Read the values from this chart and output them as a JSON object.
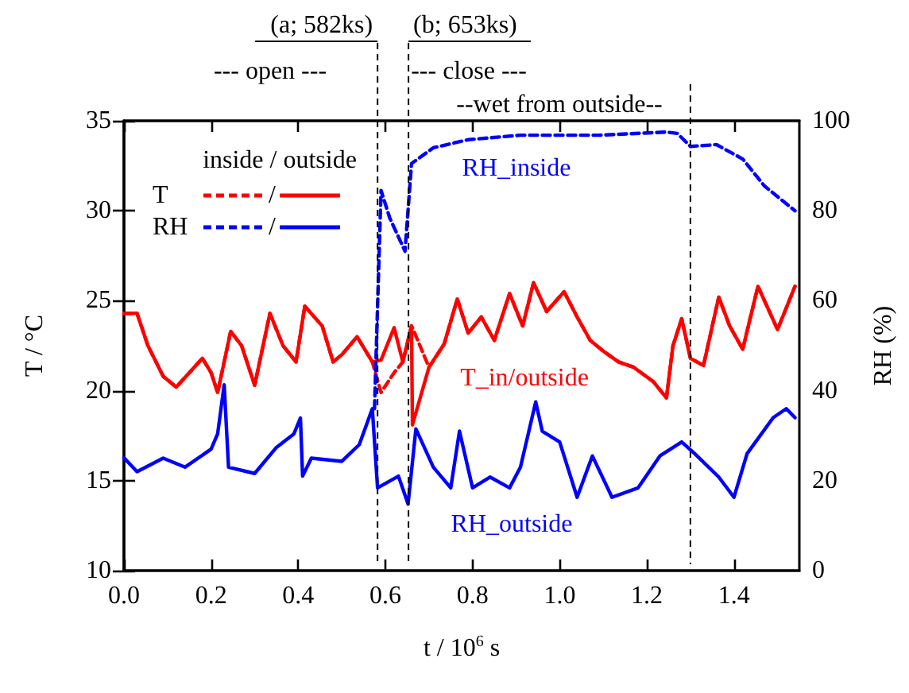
{
  "chart_data": {
    "type": "line",
    "xlabel": "t / 10$^{6}$ s",
    "ylabel": "T / °C",
    "y2label": "RH (%)",
    "legend_title": "inside / outside",
    "xlim": [
      0,
      1.55
    ],
    "xticks": [
      {
        "value": 0,
        "label": "0.0"
      },
      {
        "value": 0.2,
        "label": "0.2"
      },
      {
        "value": 0.4,
        "label": "0.4"
      },
      {
        "value": 0.6,
        "label": "0.6"
      },
      {
        "value": 0.8,
        "label": "0.8"
      },
      {
        "value": 1,
        "label": "1.0"
      },
      {
        "value": 1.2,
        "label": "1.2"
      },
      {
        "value": 1.4,
        "label": "1.4"
      }
    ],
    "ylim": [
      10,
      35
    ],
    "yticks": [
      10,
      15,
      20,
      25,
      30,
      35
    ],
    "y2lim": [
      0,
      100
    ],
    "y2ticks": [
      0,
      20,
      40,
      60,
      80,
      100
    ],
    "grid": false,
    "legend": "top left",
    "marker": "none",
    "series": [
      {
        "name": "T",
        "color": "#ff0000",
        "line_style": "dashed",
        "x": [
          0,
          0.03,
          0.055,
          0.09,
          0.12,
          0.15,
          0.18,
          0.2,
          0.215,
          0.245,
          0.27,
          0.3,
          0.335,
          0.365,
          0.395,
          0.415,
          0.455,
          0.48,
          0.5,
          0.535,
          0.57,
          0.59,
          0.62,
          0.64,
          0.66,
          0.662,
          0.7,
          0.735,
          0.765,
          0.79,
          0.82,
          0.85,
          0.885,
          0.915,
          0.94,
          0.97,
          1.01,
          1.04,
          1.07,
          1.1,
          1.135,
          1.17,
          1.215,
          1.245,
          1.26,
          1.28,
          1.3,
          1.33,
          1.365,
          1.39,
          1.42,
          1.455,
          1.5,
          1.54
        ],
        "values": [
          24.3,
          24.3,
          22.5,
          20.8,
          20.2,
          21.0,
          21.8,
          21.0,
          19.9,
          23.3,
          22.5,
          20.3,
          24.3,
          22.5,
          21.6,
          24.7,
          23.6,
          21.6,
          22.0,
          23.0,
          21.6,
          19.9,
          21.0,
          21.6,
          23.6,
          23.5,
          21.3,
          22.6,
          25.1,
          23.2,
          24.1,
          22.8,
          25.4,
          23.6,
          26.0,
          24.4,
          25.5,
          24.1,
          22.8,
          22.2,
          21.6,
          21.3,
          20.5,
          19.6,
          22.5,
          24.0,
          21.8,
          21.4,
          25.2,
          23.6,
          22.3,
          25.8,
          23.4,
          25.8
        ]
      },
      {
        "name": "/",
        "color": "#ff0000",
        "line_style": "solid",
        "x": [
          0,
          0.03,
          0.055,
          0.09,
          0.12,
          0.15,
          0.18,
          0.2,
          0.215,
          0.245,
          0.27,
          0.3,
          0.335,
          0.365,
          0.395,
          0.415,
          0.455,
          0.48,
          0.5,
          0.535,
          0.57,
          0.59,
          0.62,
          0.64,
          0.66,
          0.662,
          0.7,
          0.735,
          0.765,
          0.79,
          0.82,
          0.85,
          0.885,
          0.915,
          0.94,
          0.97,
          1.01,
          1.04,
          1.07,
          1.1,
          1.135,
          1.17,
          1.215,
          1.245,
          1.26,
          1.28,
          1.3,
          1.33,
          1.365,
          1.39,
          1.42,
          1.455,
          1.5,
          1.54
        ],
        "values": [
          24.3,
          24.3,
          22.5,
          20.8,
          20.2,
          21.0,
          21.8,
          21.0,
          19.9,
          23.3,
          22.5,
          20.3,
          24.3,
          22.5,
          21.6,
          24.7,
          23.6,
          21.6,
          22.0,
          23.0,
          21.6,
          21.7,
          23.5,
          21.6,
          23.6,
          18.1,
          21.3,
          22.6,
          25.1,
          23.2,
          24.1,
          22.8,
          25.4,
          23.6,
          26.0,
          24.4,
          25.5,
          24.1,
          22.8,
          22.2,
          21.6,
          21.3,
          20.5,
          19.6,
          22.5,
          24.0,
          21.8,
          21.4,
          25.2,
          23.6,
          22.3,
          25.8,
          23.4,
          25.8
        ]
      },
      {
        "name": "RH",
        "color": "#0000ff",
        "line_style": "dashed",
        "axis": "y2",
        "x": [
          0.575,
          0.59,
          0.61,
          0.645,
          0.66,
          0.71,
          0.79,
          0.91,
          1.09,
          1.245,
          1.27,
          1.3,
          1.36,
          1.42,
          1.47,
          1.54
        ],
        "values": [
          36,
          84.5,
          78.4,
          71,
          90.5,
          94,
          95.8,
          96.8,
          96.8,
          97.5,
          97.2,
          94.3,
          94.7,
          91.5,
          85.5,
          80
        ]
      },
      {
        "name": "/",
        "color": "#0000ff",
        "line_style": "solid",
        "axis": "y2",
        "x": [
          0,
          0.03,
          0.09,
          0.14,
          0.2,
          0.215,
          0.23,
          0.24,
          0.3,
          0.35,
          0.39,
          0.405,
          0.41,
          0.43,
          0.5,
          0.54,
          0.57,
          0.582,
          0.63,
          0.652,
          0.67,
          0.71,
          0.75,
          0.77,
          0.8,
          0.84,
          0.885,
          0.91,
          0.945,
          0.96,
          1.0,
          1.04,
          1.075,
          1.12,
          1.18,
          1.23,
          1.28,
          1.31,
          1.365,
          1.4,
          1.43,
          1.49,
          1.52,
          1.54
        ],
        "values": [
          25.1,
          22,
          25,
          23,
          27,
          30.4,
          41.3,
          23,
          21.6,
          27.4,
          30.4,
          33.9,
          21,
          25,
          24.3,
          28,
          36,
          18.4,
          21,
          14.8,
          31.5,
          23,
          18.4,
          31,
          18.4,
          20.8,
          18.4,
          23,
          37.5,
          31,
          28.6,
          16.3,
          25.5,
          16.3,
          18.4,
          25.5,
          28.6,
          26,
          20.8,
          16.3,
          26,
          34,
          36,
          34
        ]
      }
    ],
    "ref_lines": [
      {
        "axis": "x",
        "value": 0.582,
        "label": "(a; 582ks)",
        "line_style": "dashed"
      },
      {
        "axis": "x",
        "value": 0.653,
        "label": "(b; 653ks)",
        "line_style": "dashed"
      },
      {
        "axis": "x",
        "value": 1.3,
        "line_style": "dashed"
      }
    ],
    "annotations": [
      "--- open ---",
      "--- close ---",
      "--wet from outside--",
      "RH_inside",
      "T_in/outside",
      "RH_outside"
    ]
  }
}
